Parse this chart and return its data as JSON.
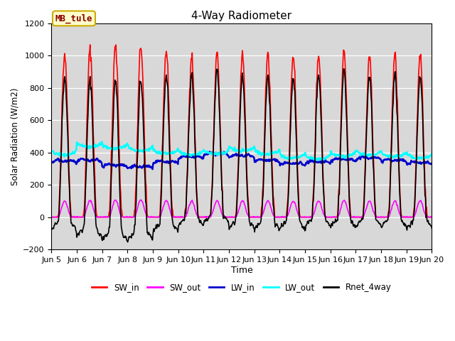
{
  "title": "4-Way Radiometer",
  "xlabel": "Time",
  "ylabel": "Solar Radiation (W/m2)",
  "station_label": "MB_tule",
  "ylim": [
    -200,
    1200
  ],
  "legend": [
    "SW_in",
    "SW_out",
    "LW_in",
    "LW_out",
    "Rnet_4way"
  ],
  "colors": {
    "SW_in": "#ff0000",
    "SW_out": "#ff00ff",
    "LW_in": "#0000cc",
    "LW_out": "#00ffff",
    "Rnet_4way": "#000000"
  },
  "line_widths": {
    "SW_in": 1.2,
    "SW_out": 1.2,
    "LW_in": 1.8,
    "LW_out": 1.8,
    "Rnet_4way": 1.2
  },
  "x_tick_labels": [
    "Jun 5",
    "Jun 6",
    "Jun 7",
    "Jun 8",
    "Jun 9",
    "Jun 10",
    "Jun 11",
    "Jun 12",
    "Jun 13",
    "Jun 14",
    "Jun 15",
    "Jun 16",
    "Jun 17",
    "Jun 18",
    "Jun 19",
    "Jun 20"
  ],
  "background_color": "#d8d8d8",
  "fig_color": "#ffffff",
  "yticks": [
    -200,
    0,
    200,
    400,
    600,
    800,
    1000,
    1200
  ]
}
